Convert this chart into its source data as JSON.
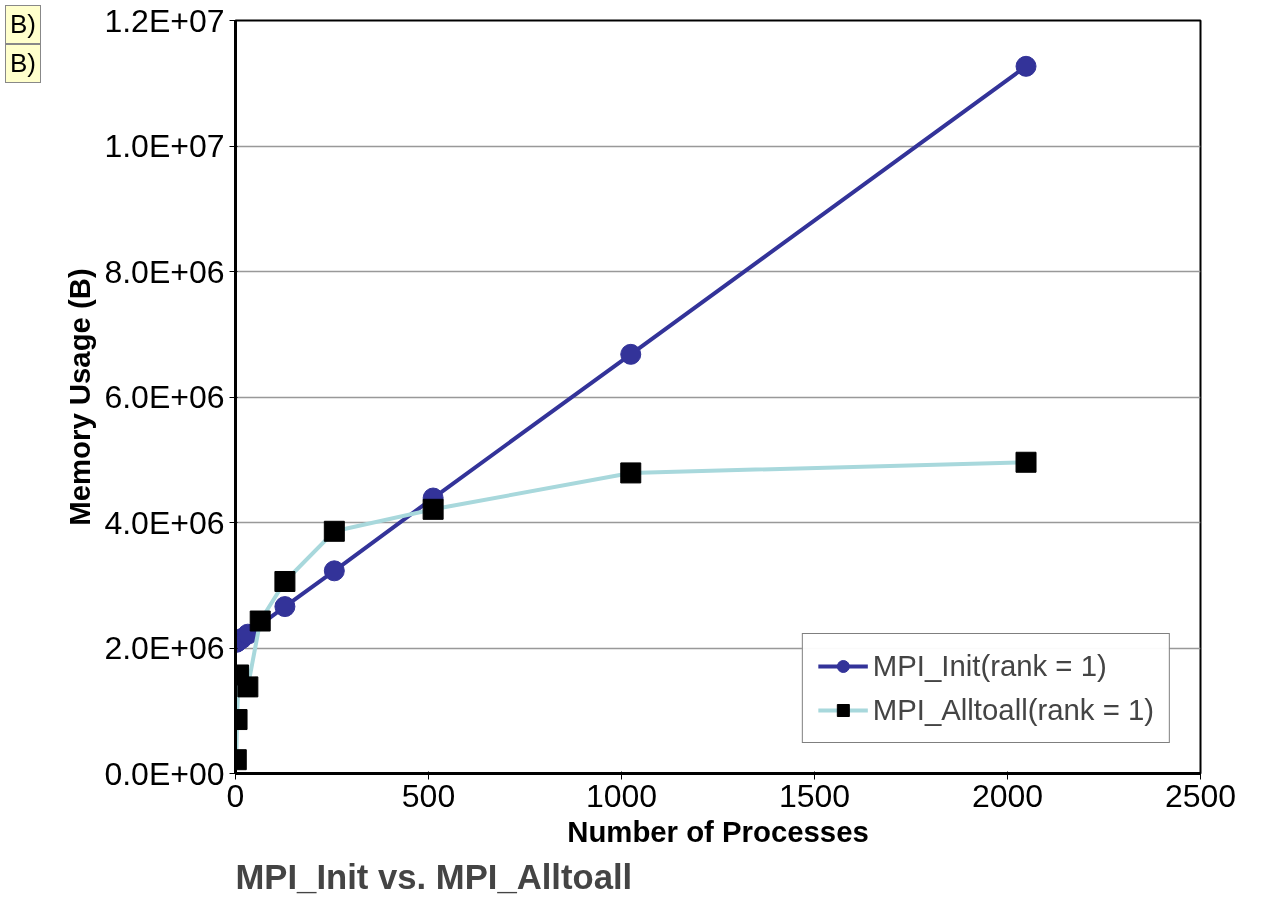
{
  "chart_data": {
    "type": "line",
    "title": "MPI_Init vs. MPI_Alltoall",
    "xlabel": "Number of Processes",
    "ylabel": "Memory Usage (B)",
    "annotations": [
      "B)",
      "B)"
    ],
    "xlim": [
      0,
      2500
    ],
    "xticks": [
      0,
      500,
      1000,
      1500,
      2000,
      2500
    ],
    "ylim": [
      0,
      12000000
    ],
    "yticks": [
      {
        "value": 0,
        "label": "0.0E+00"
      },
      {
        "value": 2000000,
        "label": "2.0E+06"
      },
      {
        "value": 4000000,
        "label": "4.0E+06"
      },
      {
        "value": 6000000,
        "label": "6.0E+06"
      },
      {
        "value": 8000000,
        "label": "8.0E+06"
      },
      {
        "value": 10000000,
        "label": "1.0E+07"
      },
      {
        "value": 12000000,
        "label": "1.2E+07"
      }
    ],
    "grid": "y",
    "legend": "bottom right",
    "series": [
      {
        "name": "MPI_Init(rank = 1)",
        "color": "#333399",
        "marker": "circle",
        "x": [
          2,
          4,
          8,
          16,
          32,
          128,
          256,
          512,
          1024,
          2048
        ],
        "values": [
          2090000,
          2100000,
          2120000,
          2150000,
          2220000,
          2660000,
          3230000,
          4390000,
          6680000,
          11270000
        ]
      },
      {
        "name": "MPI_Alltoall(rank = 1)",
        "color": "#a8d8dc",
        "marker": "square",
        "x": [
          2,
          4,
          8,
          32,
          64,
          128,
          256,
          512,
          1024,
          2048
        ],
        "values": [
          220000,
          860000,
          1570000,
          1380000,
          2430000,
          3060000,
          3860000,
          4210000,
          4790000,
          4960000
        ]
      }
    ]
  }
}
